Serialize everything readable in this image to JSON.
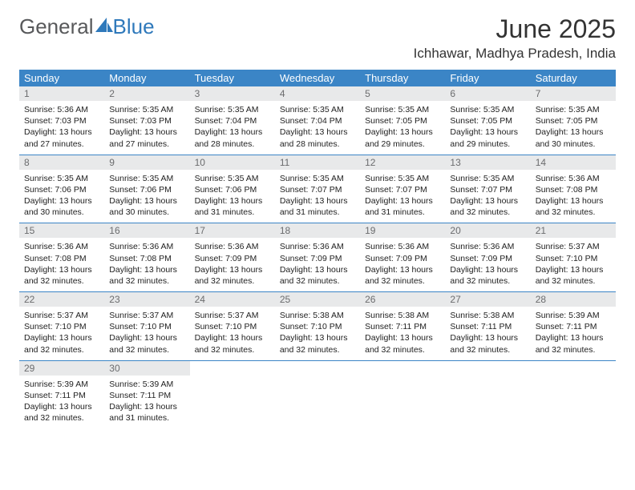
{
  "logo": {
    "text1": "General",
    "text2": "Blue"
  },
  "title": "June 2025",
  "location": "Ichhawar, Madhya Pradesh, India",
  "header_bg": "#3b85c6",
  "daynum_bg": "#e8e9ea",
  "days": [
    "Sunday",
    "Monday",
    "Tuesday",
    "Wednesday",
    "Thursday",
    "Friday",
    "Saturday"
  ],
  "weeks": [
    [
      {
        "n": "1",
        "sr": "5:36 AM",
        "ss": "7:03 PM",
        "dl": "13 hours and 27 minutes."
      },
      {
        "n": "2",
        "sr": "5:35 AM",
        "ss": "7:03 PM",
        "dl": "13 hours and 27 minutes."
      },
      {
        "n": "3",
        "sr": "5:35 AM",
        "ss": "7:04 PM",
        "dl": "13 hours and 28 minutes."
      },
      {
        "n": "4",
        "sr": "5:35 AM",
        "ss": "7:04 PM",
        "dl": "13 hours and 28 minutes."
      },
      {
        "n": "5",
        "sr": "5:35 AM",
        "ss": "7:05 PM",
        "dl": "13 hours and 29 minutes."
      },
      {
        "n": "6",
        "sr": "5:35 AM",
        "ss": "7:05 PM",
        "dl": "13 hours and 29 minutes."
      },
      {
        "n": "7",
        "sr": "5:35 AM",
        "ss": "7:05 PM",
        "dl": "13 hours and 30 minutes."
      }
    ],
    [
      {
        "n": "8",
        "sr": "5:35 AM",
        "ss": "7:06 PM",
        "dl": "13 hours and 30 minutes."
      },
      {
        "n": "9",
        "sr": "5:35 AM",
        "ss": "7:06 PM",
        "dl": "13 hours and 30 minutes."
      },
      {
        "n": "10",
        "sr": "5:35 AM",
        "ss": "7:06 PM",
        "dl": "13 hours and 31 minutes."
      },
      {
        "n": "11",
        "sr": "5:35 AM",
        "ss": "7:07 PM",
        "dl": "13 hours and 31 minutes."
      },
      {
        "n": "12",
        "sr": "5:35 AM",
        "ss": "7:07 PM",
        "dl": "13 hours and 31 minutes."
      },
      {
        "n": "13",
        "sr": "5:35 AM",
        "ss": "7:07 PM",
        "dl": "13 hours and 32 minutes."
      },
      {
        "n": "14",
        "sr": "5:36 AM",
        "ss": "7:08 PM",
        "dl": "13 hours and 32 minutes."
      }
    ],
    [
      {
        "n": "15",
        "sr": "5:36 AM",
        "ss": "7:08 PM",
        "dl": "13 hours and 32 minutes."
      },
      {
        "n": "16",
        "sr": "5:36 AM",
        "ss": "7:08 PM",
        "dl": "13 hours and 32 minutes."
      },
      {
        "n": "17",
        "sr": "5:36 AM",
        "ss": "7:09 PM",
        "dl": "13 hours and 32 minutes."
      },
      {
        "n": "18",
        "sr": "5:36 AM",
        "ss": "7:09 PM",
        "dl": "13 hours and 32 minutes."
      },
      {
        "n": "19",
        "sr": "5:36 AM",
        "ss": "7:09 PM",
        "dl": "13 hours and 32 minutes."
      },
      {
        "n": "20",
        "sr": "5:36 AM",
        "ss": "7:09 PM",
        "dl": "13 hours and 32 minutes."
      },
      {
        "n": "21",
        "sr": "5:37 AM",
        "ss": "7:10 PM",
        "dl": "13 hours and 32 minutes."
      }
    ],
    [
      {
        "n": "22",
        "sr": "5:37 AM",
        "ss": "7:10 PM",
        "dl": "13 hours and 32 minutes."
      },
      {
        "n": "23",
        "sr": "5:37 AM",
        "ss": "7:10 PM",
        "dl": "13 hours and 32 minutes."
      },
      {
        "n": "24",
        "sr": "5:37 AM",
        "ss": "7:10 PM",
        "dl": "13 hours and 32 minutes."
      },
      {
        "n": "25",
        "sr": "5:38 AM",
        "ss": "7:10 PM",
        "dl": "13 hours and 32 minutes."
      },
      {
        "n": "26",
        "sr": "5:38 AM",
        "ss": "7:11 PM",
        "dl": "13 hours and 32 minutes."
      },
      {
        "n": "27",
        "sr": "5:38 AM",
        "ss": "7:11 PM",
        "dl": "13 hours and 32 minutes."
      },
      {
        "n": "28",
        "sr": "5:39 AM",
        "ss": "7:11 PM",
        "dl": "13 hours and 32 minutes."
      }
    ],
    [
      {
        "n": "29",
        "sr": "5:39 AM",
        "ss": "7:11 PM",
        "dl": "13 hours and 32 minutes."
      },
      {
        "n": "30",
        "sr": "5:39 AM",
        "ss": "7:11 PM",
        "dl": "13 hours and 31 minutes."
      },
      null,
      null,
      null,
      null,
      null
    ]
  ],
  "labels": {
    "sunrise": "Sunrise: ",
    "sunset": "Sunset: ",
    "daylight": "Daylight: "
  }
}
